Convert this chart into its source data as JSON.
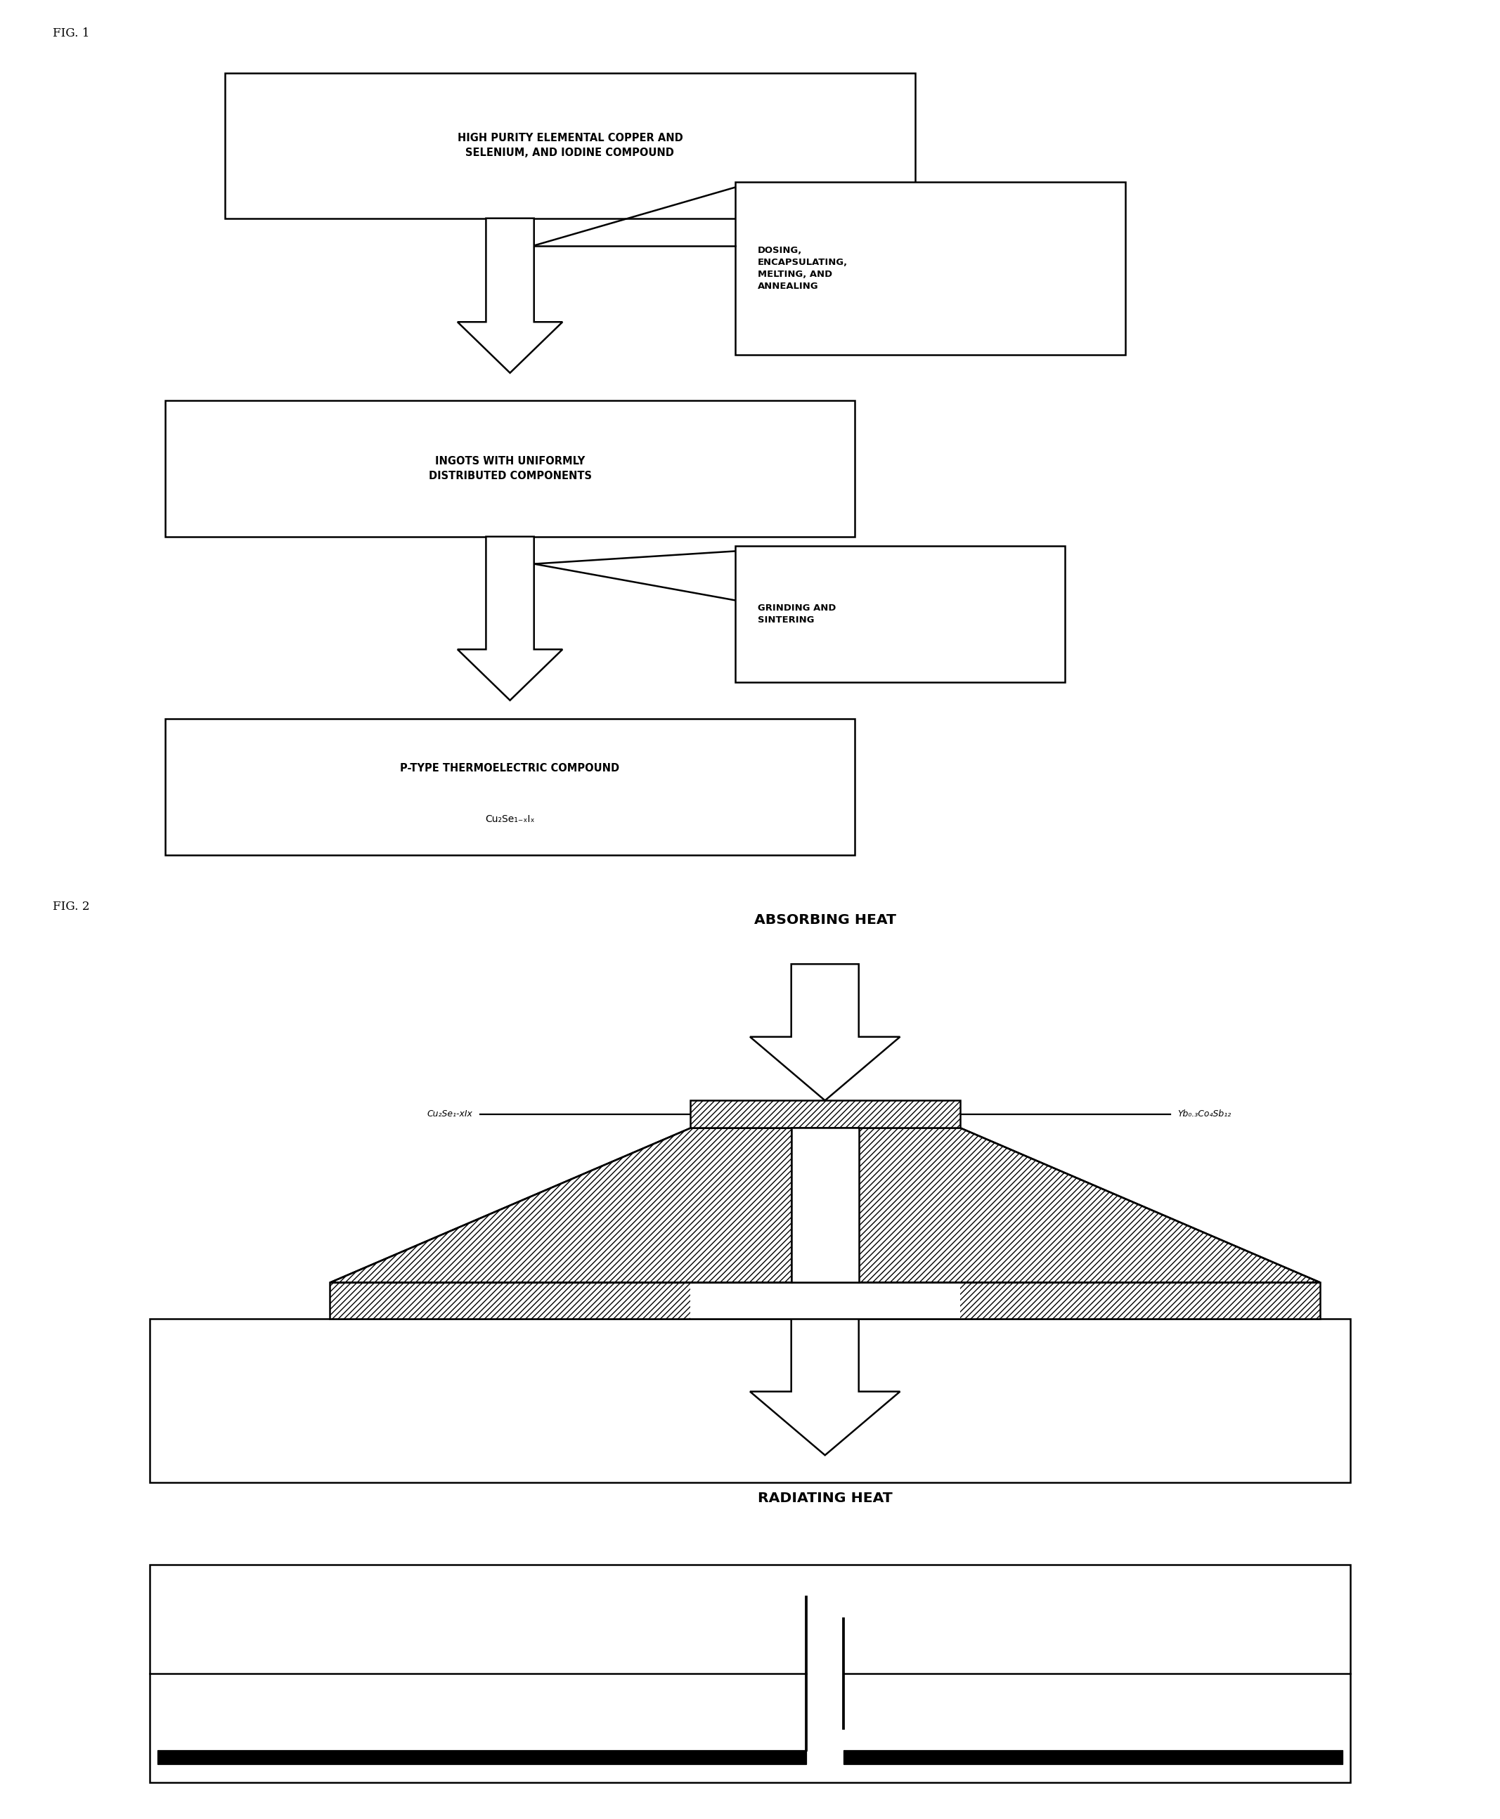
{
  "fig_width": 21.34,
  "fig_height": 25.89,
  "bg_color": "#ffffff",
  "fig1_label": "FIG. 1",
  "fig2_label": "FIG. 2",
  "box1_text": "HIGH PURITY ELEMENTAL COPPER AND\nSELENIUM, AND IODINE COMPOUND",
  "box2_text": "DOSING,\nENCAPSULATING,\nMELTING, AND\nANNEALING",
  "box3_text": "INGOTS WITH UNIFORMLY\nDISTRIBUTED COMPONENTS",
  "box4_text": "GRINDING AND\nSINTERING",
  "box5_line1": "P-TYPE THERMOELECTRIC COMPOUND",
  "box5_line2": "Cu₂Se₁₋ₓIₓ",
  "label_cu2se": "Cu₂Se₁-xIx",
  "label_yb": "Yb₀.₃Co₄Sb₁₂",
  "absorbing_heat": "ABSORBING HEAT",
  "radiating_heat": "RADIATING HEAT"
}
